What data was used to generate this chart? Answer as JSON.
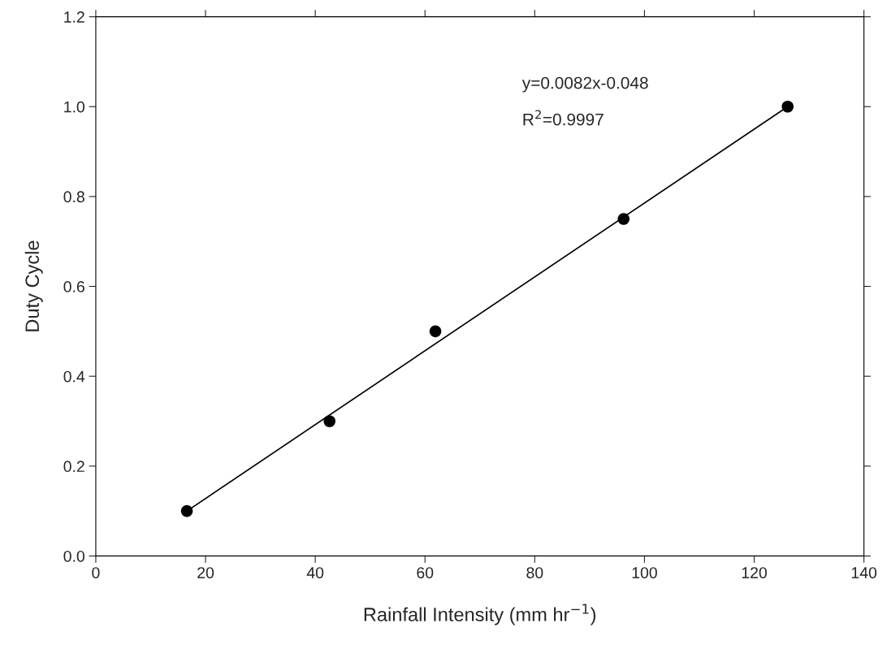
{
  "chart_data": {
    "type": "scatter",
    "xlabel": "Rainfall Intensity (mm hr$^{−1}$)",
    "ylabel": "Duty Cycle",
    "x": [
      16.6,
      42.6,
      61.9,
      96.2,
      126.1
    ],
    "series": [
      {
        "color": "#000000",
        "marker": "circle",
        "values": [
          0.1,
          0.3,
          0.5,
          0.75,
          1.0
        ]
      },
      {
        "type": "line",
        "color": "#000000",
        "line_style": "solid",
        "x": [
          16.6,
          126.1
        ],
        "values": [
          0.1,
          1.0
        ]
      }
    ],
    "annotations": [
      "y=0.0082x-0.048",
      "R$^{2}$=0.9997"
    ],
    "xlim": [
      0,
      140
    ],
    "xticks": [
      0,
      20,
      40,
      60,
      80,
      100,
      120,
      140
    ],
    "ylim": [
      0,
      1.2
    ],
    "yticks": [
      {
        "value": 0,
        "label": "0.0"
      },
      0.2,
      0.4,
      0.6,
      0.8,
      {
        "value": 1,
        "label": "1.0"
      },
      1.2
    ],
    "grid": false,
    "legend": false
  }
}
